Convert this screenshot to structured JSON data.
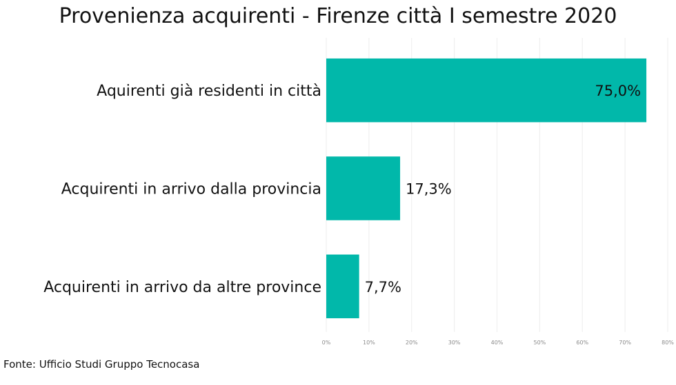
{
  "chart_data": {
    "type": "bar",
    "orientation": "horizontal",
    "title": "Provenienza acquirenti - Firenze città I semestre 2020",
    "categories": [
      "Aquirenti già residenti in città",
      "Acquirenti in arrivo dalla provincia",
      "Acquirenti in arrivo da altre province"
    ],
    "values": [
      75.0,
      17.3,
      7.7
    ],
    "data_labels": [
      "75,0%",
      "17,3%",
      "7,7%"
    ],
    "xlim": [
      0,
      80
    ],
    "x_ticks": [
      0,
      10,
      20,
      30,
      40,
      50,
      60,
      70,
      80
    ],
    "x_tick_labels": [
      "0%",
      "10%",
      "20%",
      "30%",
      "40%",
      "50%",
      "60%",
      "70%",
      "80%"
    ],
    "grid": true,
    "bar_color": "#01b8aa",
    "xlabel": "",
    "ylabel": ""
  },
  "source": "Fonte: Ufficio Studi Gruppo Tecnocasa"
}
